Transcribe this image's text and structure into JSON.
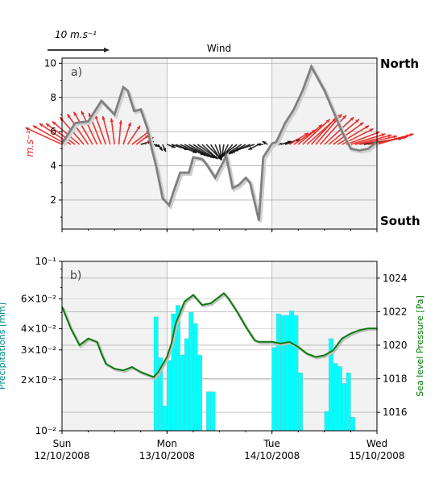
{
  "figure": {
    "dates": [
      "2008-10-12",
      "2008-10-13",
      "2008-10-14",
      "2008-10-15"
    ],
    "day_labels": [
      "Sun",
      "Mon",
      "Tue",
      "Wed"
    ],
    "date_labels": [
      "12/10/2008",
      "13/10/2008",
      "14/10/2008",
      "15/10/2008"
    ]
  },
  "chart_data": [
    {
      "type": "line",
      "panel_label": "a)",
      "title": "Wind",
      "ylabel": "m.s⁻¹",
      "ylim": [
        0.3,
        10.3
      ],
      "yticks": [
        2,
        4,
        6,
        8,
        10
      ],
      "xlim": [
        "2008-10-12 00:00",
        "2008-10-15 00:00"
      ],
      "direction_labels": {
        "top": "North",
        "bottom": "South"
      },
      "scale_label": "10 m.s⁻¹",
      "colors": {
        "speed_line": "#808080",
        "wind_arrow_strong": "#e8231f",
        "wind_arrow_weak": "#111111",
        "shade": "#f2f2f2"
      },
      "series": [
        {
          "x": [
            "2008-10-12 00:00",
            "2008-10-12 03:00",
            "2008-10-12 06:00",
            "2008-10-12 09:00",
            "2008-10-12 12:00",
            "2008-10-12 14:00",
            "2008-10-12 15:00",
            "2008-10-12 16:30",
            "2008-10-12 18:00",
            "2008-10-12 19:30",
            "2008-10-12 20:30",
            "2008-10-12 21:30",
            "2008-10-12 23:00",
            "2008-10-13 00:30",
            "2008-10-13 01:30",
            "2008-10-13 03:00",
            "2008-10-13 05:00",
            "2008-10-13 06:00",
            "2008-10-13 08:00",
            "2008-10-13 09:00",
            "2008-10-13 11:00",
            "2008-10-13 13:00",
            "2008-10-13 13:30",
            "2008-10-13 15:00",
            "2008-10-13 16:30",
            "2008-10-13 18:00",
            "2008-10-13 19:00",
            "2008-10-13 21:00",
            "2008-10-13 22:00",
            "2008-10-14 00:00",
            "2008-10-14 01:00",
            "2008-10-14 03:00",
            "2008-10-14 05:00",
            "2008-10-14 07:00",
            "2008-10-14 09:00",
            "2008-10-14 12:00",
            "2008-10-14 14:00",
            "2008-10-14 16:00",
            "2008-10-14 18:00",
            "2008-10-14 20:00",
            "2008-10-14 22:00",
            "2008-10-15 00:00"
          ],
          "y": [
            5.3,
            6.5,
            6.6,
            7.8,
            7.0,
            8.6,
            8.4,
            7.2,
            7.3,
            6.2,
            5.0,
            4.0,
            2.1,
            1.7,
            2.5,
            3.6,
            3.6,
            4.5,
            4.4,
            4.1,
            3.3,
            4.3,
            4.6,
            2.7,
            2.9,
            3.3,
            3.0,
            0.8,
            4.5,
            5.3,
            5.4,
            6.5,
            7.3,
            8.4,
            9.8,
            8.4,
            7.2,
            6.0,
            5.0,
            4.9,
            5.0,
            5.4
          ]
        }
      ],
      "wind_vectors": {
        "x": [
          "2008-10-12 00:00",
          "2008-10-12 01:00",
          "2008-10-12 02:00",
          "2008-10-12 03:00",
          "2008-10-12 04:00",
          "2008-10-12 05:00",
          "2008-10-12 06:00",
          "2008-10-12 07:00",
          "2008-10-12 08:00",
          "2008-10-12 09:00",
          "2008-10-12 10:00",
          "2008-10-12 11:00",
          "2008-10-12 12:00",
          "2008-10-12 13:00",
          "2008-10-12 14:00",
          "2008-10-12 15:00",
          "2008-10-12 16:00",
          "2008-10-12 17:00",
          "2008-10-12 18:00",
          "2008-10-12 19:00",
          "2008-10-12 20:00",
          "2008-10-12 21:00",
          "2008-10-12 22:00",
          "2008-10-12 23:00",
          "2008-10-13 00:00",
          "2008-10-13 01:00",
          "2008-10-13 02:00",
          "2008-10-13 03:00",
          "2008-10-13 04:00",
          "2008-10-13 05:00",
          "2008-10-13 06:00",
          "2008-10-13 07:00",
          "2008-10-13 08:00",
          "2008-10-13 09:00",
          "2008-10-13 10:00",
          "2008-10-13 11:00",
          "2008-10-13 12:00",
          "2008-10-13 13:00",
          "2008-10-13 14:00",
          "2008-10-13 15:00",
          "2008-10-13 16:00",
          "2008-10-13 17:00",
          "2008-10-13 18:00",
          "2008-10-13 19:00",
          "2008-10-13 20:00",
          "2008-10-13 21:00",
          "2008-10-13 22:00",
          "2008-10-13 23:00",
          "2008-10-14 00:00",
          "2008-10-14 01:00",
          "2008-10-14 02:00",
          "2008-10-14 03:00",
          "2008-10-14 04:00",
          "2008-10-14 05:00",
          "2008-10-14 06:00",
          "2008-10-14 07:00",
          "2008-10-14 08:00",
          "2008-10-14 09:00",
          "2008-10-14 10:00",
          "2008-10-14 11:00",
          "2008-10-14 12:00",
          "2008-10-14 13:00",
          "2008-10-14 14:00",
          "2008-10-14 15:00",
          "2008-10-14 16:00",
          "2008-10-14 17:00",
          "2008-10-14 18:00",
          "2008-10-14 19:00",
          "2008-10-14 20:00",
          "2008-10-14 21:00",
          "2008-10-14 22:00",
          "2008-10-14 23:00",
          "2008-10-15 00:00"
        ],
        "u": [
          -3.5,
          -3.2,
          -3.0,
          -2.8,
          -2.6,
          -2.3,
          -2.0,
          -1.8,
          -1.5,
          -1.2,
          -1.0,
          -0.7,
          -0.3,
          0.2,
          0.7,
          1.2,
          1.7,
          1.2,
          1.0,
          0.8,
          0.4,
          0.5,
          0.4,
          0.3,
          0.8,
          1.6,
          2.0,
          2.3,
          2.2,
          2.1,
          2.0,
          1.8,
          1.5,
          1.4,
          1.0,
          0.6,
          0.2,
          -0.2,
          -0.6,
          -1.0,
          -1.4,
          -1.5,
          -1.6,
          -1.8,
          -1.9,
          -1.0,
          -0.6,
          -0.5,
          0.3,
          0.5,
          1.0,
          1.4,
          1.8,
          2.1,
          2.3,
          2.6,
          2.8,
          2.6,
          2.5,
          2.5,
          2.8,
          2.9,
          2.9,
          3.0,
          3.0,
          3.2,
          3.3,
          3.5,
          3.6,
          3.7,
          3.7,
          3.6,
          3.5
        ],
        "v": [
          1.6,
          1.8,
          2.0,
          2.0,
          2.2,
          2.6,
          2.9,
          3.1,
          3.2,
          3.0,
          2.8,
          2.7,
          2.5,
          2.3,
          2.1,
          1.8,
          1.3,
          0.9,
          0.3,
          0.7,
          0.3,
          -0.2,
          -0.6,
          -0.7,
          -0.3,
          -0.5,
          -0.8,
          -1.0,
          -1.1,
          -1.2,
          -1.3,
          -1.3,
          -1.4,
          -1.4,
          -1.5,
          -1.4,
          -1.5,
          -1.3,
          -1.2,
          -1.2,
          -1.1,
          -1.0,
          -0.9,
          -0.8,
          -0.6,
          -0.5,
          0.0,
          0.3,
          -0.2,
          0.1,
          0.3,
          0.5,
          1.1,
          1.4,
          1.9,
          2.4,
          2.5,
          2.8,
          2.9,
          2.8,
          2.6,
          2.4,
          2.1,
          1.8,
          1.5,
          1.2,
          1.0,
          0.9,
          0.8,
          0.6,
          0.7,
          0.9,
          1.0
        ]
      }
    },
    {
      "type": "bar",
      "panel_label": "b)",
      "ylabel": "Precipitations [mm]",
      "y2label": "Sea level Pressure [Pa]",
      "yscale": "log",
      "ylim": [
        0.01,
        0.1
      ],
      "yticks": [
        0.01,
        0.02,
        0.03,
        0.04,
        0.06,
        0.1
      ],
      "ytick_labels": [
        "10⁻²",
        "2×10⁻²",
        "3×10⁻²",
        "4×10⁻²",
        "6×10⁻²",
        "10⁻¹"
      ],
      "y2lim": [
        1014.9,
        1025
      ],
      "y2ticks": [
        1016,
        1018,
        1020,
        1022,
        1024
      ],
      "xlim": [
        "2008-10-12 00:00",
        "2008-10-15 00:00"
      ],
      "xticks": [
        "2008-10-12 00:00",
        "2008-10-13 00:00",
        "2008-10-14 00:00",
        "2008-10-15 00:00"
      ],
      "colors": {
        "bars": "#00ffff",
        "pressure_line": "#0a7a0a",
        "ylabel": "#008b8b",
        "y2label": "#007700",
        "shade": "#f2f2f2"
      },
      "precipitation": {
        "x": [
          "2008-10-12 21:00",
          "2008-10-12 22:00",
          "2008-10-12 23:00",
          "2008-10-13 00:00",
          "2008-10-13 01:00",
          "2008-10-13 02:00",
          "2008-10-13 03:00",
          "2008-10-13 04:00",
          "2008-10-13 05:00",
          "2008-10-13 06:00",
          "2008-10-13 07:00",
          "2008-10-13 08:00",
          "2008-10-13 09:00",
          "2008-10-13 10:00",
          "2008-10-13 11:00",
          "2008-10-13 12:00",
          "2008-10-13 13:00",
          "2008-10-14 00:00",
          "2008-10-14 01:00",
          "2008-10-14 02:00",
          "2008-10-14 03:00",
          "2008-10-14 04:00",
          "2008-10-14 05:00",
          "2008-10-14 06:00",
          "2008-10-14 07:00",
          "2008-10-14 12:00",
          "2008-10-14 13:00",
          "2008-10-14 14:00",
          "2008-10-14 15:00",
          "2008-10-14 16:00",
          "2008-10-14 17:00",
          "2008-10-14 18:00"
        ],
        "values": [
          0.047,
          0.027,
          0.014,
          0.026,
          0.049,
          0.055,
          0.028,
          0.035,
          0.05,
          0.043,
          0.028,
          0.0,
          0.017,
          0.017,
          0.0,
          0.0,
          0.0,
          0.031,
          0.049,
          0.048,
          0.048,
          0.051,
          0.048,
          0.022,
          0.0,
          0.013,
          0.035,
          0.025,
          0.024,
          0.019,
          0.022,
          0.012
        ],
        "bar_width_hours": 1
      },
      "pressure": {
        "x": [
          "2008-10-12 00:00",
          "2008-10-12 02:00",
          "2008-10-12 04:00",
          "2008-10-12 06:00",
          "2008-10-12 08:00",
          "2008-10-12 09:00",
          "2008-10-12 10:00",
          "2008-10-12 12:00",
          "2008-10-12 14:00",
          "2008-10-12 16:00",
          "2008-10-12 18:00",
          "2008-10-12 20:00",
          "2008-10-12 21:00",
          "2008-10-12 22:00",
          "2008-10-13 00:00",
          "2008-10-13 01:00",
          "2008-10-13 02:00",
          "2008-10-13 04:00",
          "2008-10-13 06:00",
          "2008-10-13 08:00",
          "2008-10-13 10:00",
          "2008-10-13 12:00",
          "2008-10-13 13:00",
          "2008-10-13 14:00",
          "2008-10-13 16:00",
          "2008-10-13 18:00",
          "2008-10-13 20:00",
          "2008-10-13 21:00",
          "2008-10-13 22:00",
          "2008-10-14 00:00",
          "2008-10-14 02:00",
          "2008-10-14 04:00",
          "2008-10-14 06:00",
          "2008-10-14 08:00",
          "2008-10-14 10:00",
          "2008-10-14 12:00",
          "2008-10-14 14:00",
          "2008-10-14 16:00",
          "2008-10-14 18:00",
          "2008-10-14 20:00",
          "2008-10-14 22:00",
          "2008-10-15 00:00"
        ],
        "values": [
          1022.3,
          1021.0,
          1020.0,
          1020.4,
          1020.2,
          1019.5,
          1018.9,
          1018.6,
          1018.5,
          1018.7,
          1018.4,
          1018.2,
          1018.1,
          1018.4,
          1019.3,
          1020.1,
          1021.3,
          1022.6,
          1023.0,
          1022.4,
          1022.5,
          1022.9,
          1023.1,
          1022.8,
          1022.0,
          1021.1,
          1020.3,
          1020.2,
          1020.2,
          1020.2,
          1020.1,
          1020.2,
          1019.9,
          1019.5,
          1019.3,
          1019.4,
          1019.7,
          1020.4,
          1020.7,
          1020.9,
          1021.0,
          1021.0
        ]
      }
    }
  ]
}
